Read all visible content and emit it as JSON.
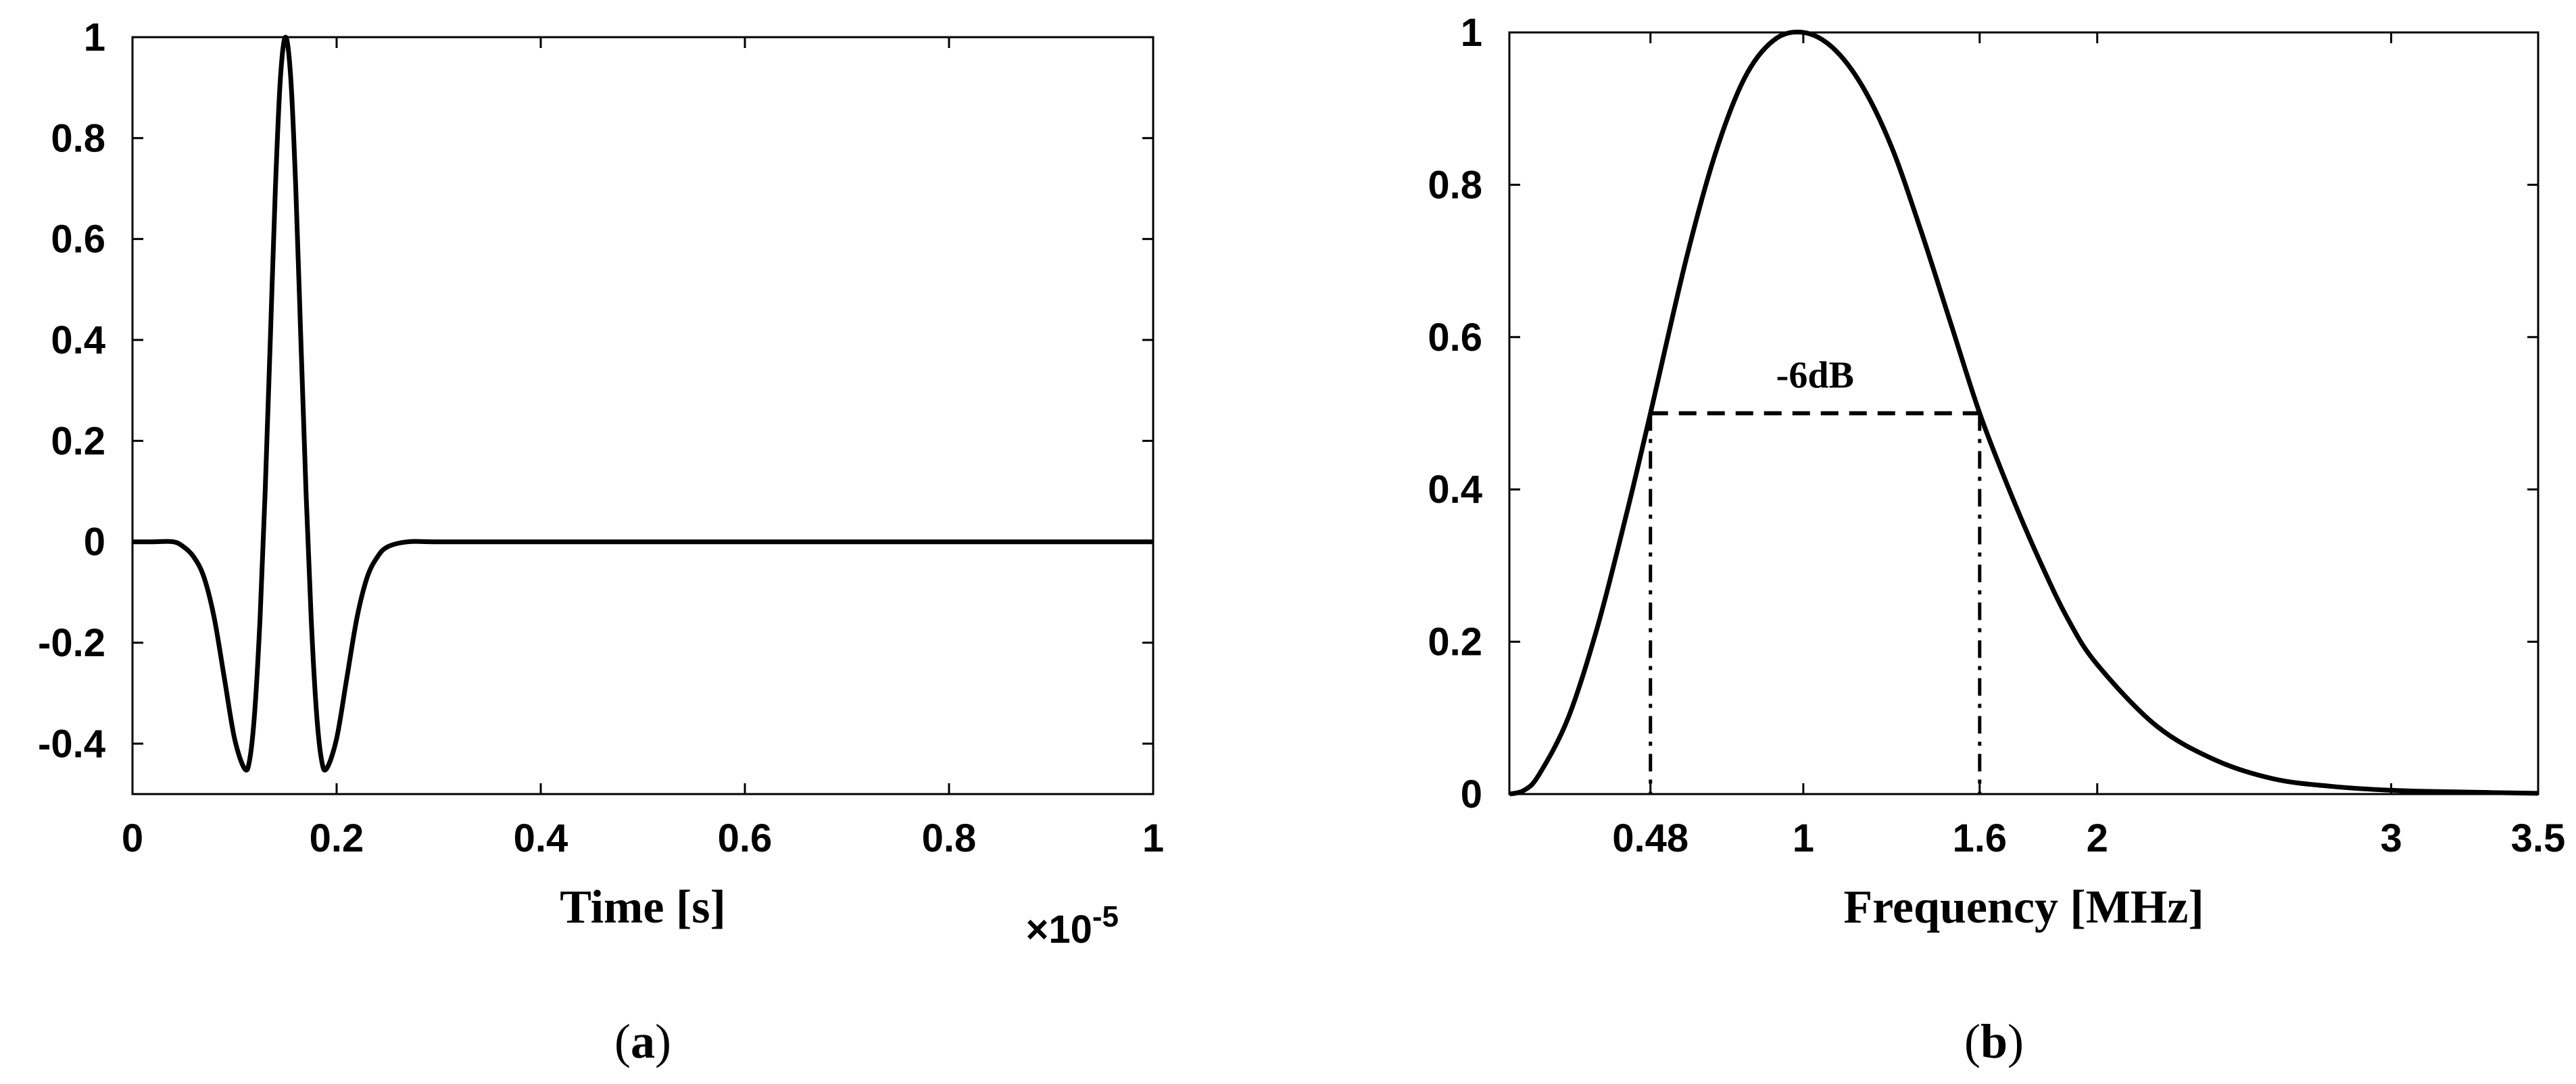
{
  "chart_data": [
    {
      "type": "line",
      "panel_label": "a",
      "xlabel": "Time [s]",
      "x_multiplier": "×10",
      "x_multiplier_exponent": "-5",
      "ylabel": "",
      "xlim": [
        0,
        1
      ],
      "ylim": [
        -0.5,
        1
      ],
      "x_ticks": [
        "0",
        "0.2",
        "0.4",
        "0.6",
        "0.8",
        "1"
      ],
      "y_ticks": [
        "-0.4",
        "-0.2",
        "0",
        "0.2",
        "0.4",
        "0.6",
        "0.8",
        "1"
      ],
      "grid": false,
      "series": [
        {
          "x": [
            0,
            0.02,
            0.04,
            0.05,
            0.06,
            0.07,
            0.08,
            0.09,
            0.1,
            0.11,
            0.115,
            0.12,
            0.125,
            0.13,
            0.135,
            0.14,
            0.145,
            0.15,
            0.155,
            0.16,
            0.165,
            0.17,
            0.175,
            0.18,
            0.185,
            0.19,
            0.2,
            0.21,
            0.22,
            0.23,
            0.24,
            0.25,
            0.27,
            0.3,
            0.4,
            0.5,
            0.6,
            0.7,
            0.8,
            0.9,
            1.0
          ],
          "y": [
            0,
            0,
            0,
            -0.01,
            -0.03,
            -0.07,
            -0.15,
            -0.27,
            -0.39,
            -0.45,
            -0.43,
            -0.33,
            -0.15,
            0.1,
            0.4,
            0.7,
            0.92,
            1.0,
            0.92,
            0.7,
            0.4,
            0.1,
            -0.15,
            -0.33,
            -0.43,
            -0.45,
            -0.39,
            -0.27,
            -0.15,
            -0.07,
            -0.03,
            -0.01,
            0,
            0,
            0,
            0,
            0,
            0,
            0,
            0,
            0
          ]
        }
      ]
    },
    {
      "type": "line",
      "panel_label": "b",
      "xlabel": "Frequency [MHz]",
      "ylabel": "",
      "xlim": [
        0,
        3.5
      ],
      "ylim": [
        0,
        1
      ],
      "x_ticks": [
        "0.48",
        "1",
        "1.6",
        "2",
        "3",
        "3.5"
      ],
      "y_ticks": [
        "0",
        "0.2",
        "0.4",
        "0.6",
        "0.8",
        "1"
      ],
      "grid": false,
      "annotation": "-6dB",
      "half_power_level": 0.5,
      "band_edges": [
        0.48,
        1.6
      ],
      "series": [
        {
          "x": [
            0,
            0.05,
            0.1,
            0.2,
            0.3,
            0.4,
            0.48,
            0.6,
            0.7,
            0.8,
            0.9,
            1.0,
            1.1,
            1.2,
            1.3,
            1.4,
            1.5,
            1.6,
            1.7,
            1.8,
            1.9,
            2.0,
            2.2,
            2.4,
            2.6,
            2.8,
            3.0,
            3.2,
            3.5
          ],
          "y": [
            0,
            0.005,
            0.025,
            0.1,
            0.22,
            0.37,
            0.5,
            0.7,
            0.84,
            0.94,
            0.99,
            1.0,
            0.98,
            0.93,
            0.85,
            0.74,
            0.62,
            0.5,
            0.4,
            0.31,
            0.23,
            0.17,
            0.09,
            0.045,
            0.02,
            0.01,
            0.005,
            0.003,
            0.001
          ]
        }
      ]
    }
  ]
}
